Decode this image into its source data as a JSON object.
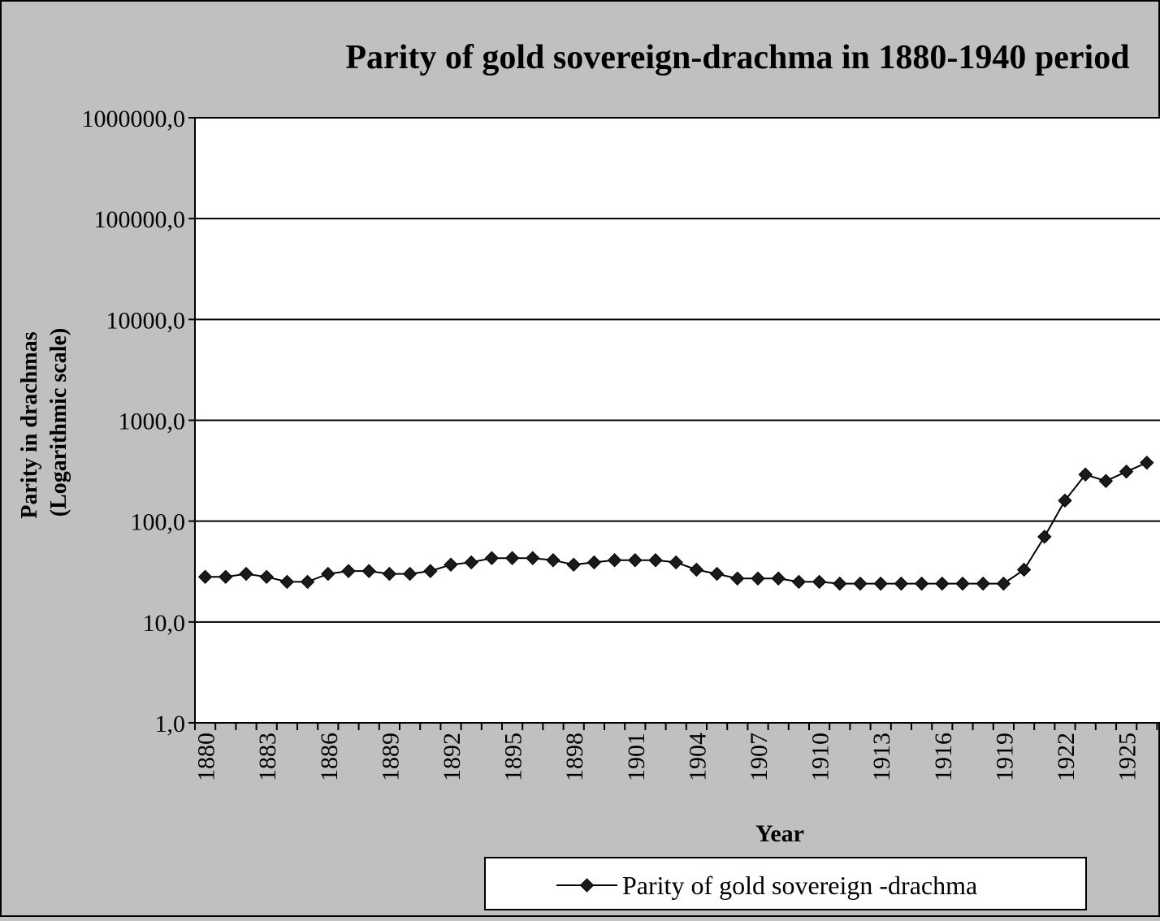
{
  "chart_data": {
    "type": "line",
    "title": "Parity of gold sovereign-drachma in 1880-1940 period",
    "xlabel": "Year",
    "ylabel": "Parity in drachmas (Logarithmic scale)",
    "ylabel_lines": [
      "Parity in drachmas",
      "(Logarithmic scale)"
    ],
    "y_scale": "log",
    "ylim": [
      1,
      1000000
    ],
    "y_tick_labels": [
      "1,0",
      "10,0",
      "100,0",
      "1000,0",
      "10000,0",
      "100000,0",
      "1000000,0"
    ],
    "x_tick_labels": [
      "1880",
      "1883",
      "1886",
      "1889",
      "1892",
      "1895",
      "1898",
      "1901",
      "1904",
      "1907",
      "1910",
      "1913",
      "1916",
      "1919",
      "1922",
      "1925"
    ],
    "grid": true,
    "legend_position": "bottom",
    "series": [
      {
        "name": "Parity of gold sovereign -drachma",
        "color": "#000000",
        "marker": "diamond",
        "x": [
          1880,
          1881,
          1882,
          1883,
          1884,
          1885,
          1886,
          1887,
          1888,
          1889,
          1890,
          1891,
          1892,
          1893,
          1894,
          1895,
          1896,
          1897,
          1898,
          1899,
          1900,
          1901,
          1902,
          1903,
          1904,
          1905,
          1906,
          1907,
          1908,
          1909,
          1910,
          1911,
          1912,
          1913,
          1914,
          1915,
          1916,
          1917,
          1918,
          1919,
          1920,
          1921,
          1922,
          1923,
          1924,
          1925,
          1926
        ],
        "values": [
          28,
          28,
          30,
          28,
          25,
          25,
          30,
          32,
          32,
          30,
          30,
          32,
          37,
          39,
          43,
          43,
          43,
          41,
          37,
          39,
          41,
          41,
          41,
          39,
          33,
          30,
          27,
          27,
          27,
          25,
          25,
          24,
          24,
          24,
          24,
          24,
          24,
          24,
          24,
          24,
          33,
          70,
          160,
          290,
          250,
          310,
          380
        ]
      }
    ]
  }
}
